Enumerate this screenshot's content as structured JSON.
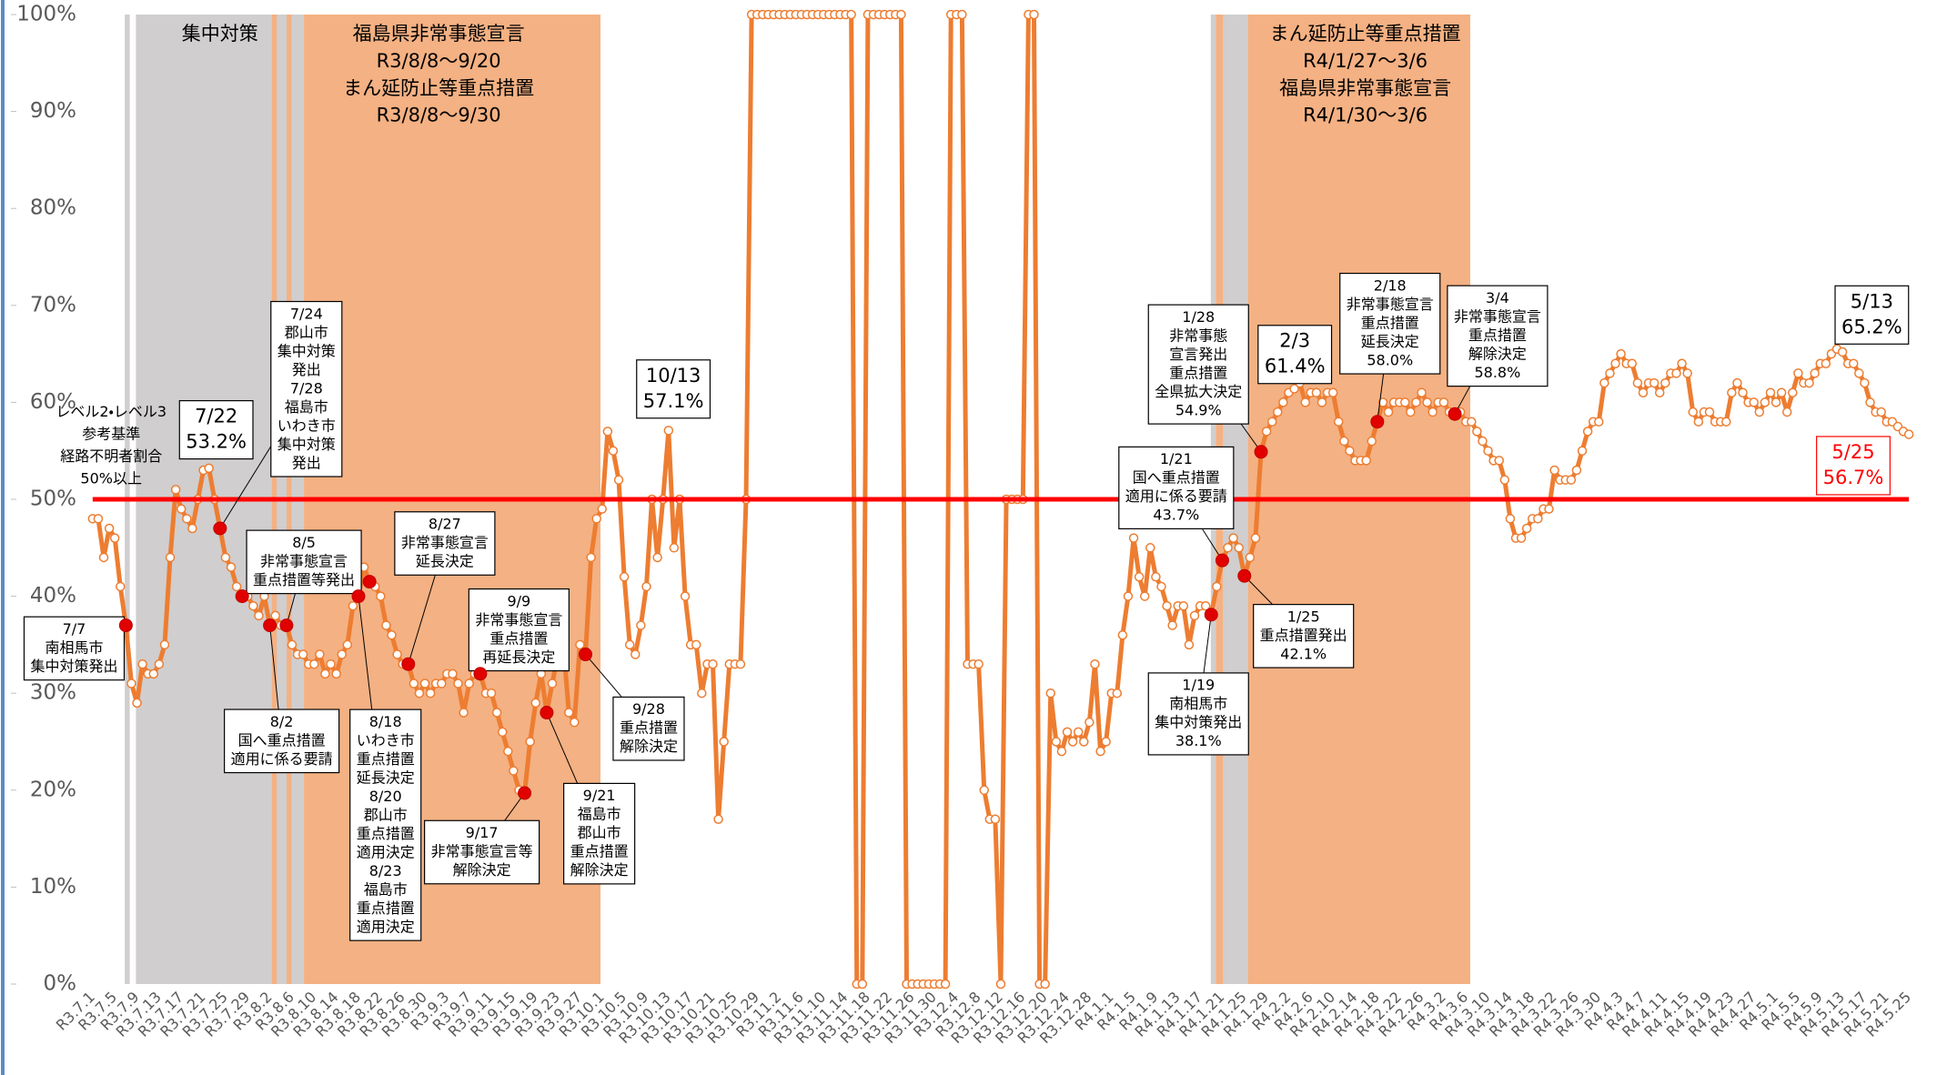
{
  "chart_data": {
    "type": "line",
    "color": "#ed7d31",
    "ylim": [
      0,
      100
    ],
    "yticks": [
      {
        "value": 0,
        "label": "0%"
      },
      {
        "value": 10,
        "label": "10%"
      },
      {
        "value": 20,
        "label": "20%"
      },
      {
        "value": 30,
        "label": "30%"
      },
      {
        "value": 40,
        "label": "40%"
      },
      {
        "value": 50,
        "label": "50%"
      },
      {
        "value": 60,
        "label": "60%"
      },
      {
        "value": 70,
        "label": "70%"
      },
      {
        "value": 80,
        "label": "80%"
      },
      {
        "value": 90,
        "label": "90%"
      },
      {
        "value": 100,
        "label": "100%"
      }
    ],
    "reference_line": {
      "value": 50,
      "color": "#ff0000",
      "label": [
        "レベル2・レベル3",
        "参考基準",
        "経路不明者割合",
        "50%以上"
      ]
    },
    "period_labels": [
      [
        "集中対策"
      ],
      [
        "福島県非常事態宣言",
        "R3/8/8～9/20",
        "まん延防止等重点措置",
        "R3/8/8～9/30"
      ],
      [
        "まん延防止等重点措置",
        "R4/1/27～3/6",
        "福島県非常事態宣言",
        "R4/1/30～3/6"
      ]
    ],
    "annotations": [
      {
        "lines": [
          "7/7",
          "南相馬市",
          "集中対策発出"
        ]
      },
      {
        "lines": [
          "7/22",
          "53.2%"
        ]
      },
      {
        "lines": [
          "7/24",
          "郡山市",
          "集中対策",
          "発出",
          "7/28",
          "福島市",
          "いわき市",
          "集中対策",
          "発出"
        ]
      },
      {
        "lines": [
          "8/5",
          "非常事態宣言",
          "重点措置等発出"
        ]
      },
      {
        "lines": [
          "8/2",
          "国へ重点措置",
          "適用に係る要請"
        ]
      },
      {
        "lines": [
          "8/18",
          "いわき市",
          "重点措置",
          "延長決定",
          "8/20",
          "郡山市",
          "重点措置",
          "適用決定",
          "8/23",
          "福島市",
          "重点措置",
          "適用決定"
        ]
      },
      {
        "lines": [
          "8/27",
          "非常事態宣言",
          "延長決定"
        ]
      },
      {
        "lines": [
          "9/9",
          "非常事態宣言",
          "重点措置",
          "再延長決定"
        ]
      },
      {
        "lines": [
          "9/17",
          "非常事態宣言等",
          "解除決定"
        ]
      },
      {
        "lines": [
          "9/21",
          "福島市",
          "郡山市",
          "重点措置",
          "解除決定"
        ]
      },
      {
        "lines": [
          "9/28",
          "重点措置",
          "解除決定"
        ]
      },
      {
        "lines": [
          "10/13",
          "57.1%"
        ]
      },
      {
        "lines": [
          "1/19",
          "南相馬市",
          "集中対策発出",
          "38.1%"
        ]
      },
      {
        "lines": [
          "1/21",
          "国へ重点措置",
          "適用に係る要請",
          "43.7%"
        ]
      },
      {
        "lines": [
          "1/25",
          "重点措置発出",
          "42.1%"
        ]
      },
      {
        "lines": [
          "1/28",
          "非常事態",
          "宣言発出",
          "重点措置",
          "全県拡大決定",
          "54.9%"
        ]
      },
      {
        "lines": [
          "2/3",
          "61.4%"
        ]
      },
      {
        "lines": [
          "2/18",
          "非常事態宣言",
          "重点措置",
          "延長決定",
          "58.0%"
        ]
      },
      {
        "lines": [
          "3/4",
          "非常事態宣言",
          "重点措置",
          "解除決定",
          "58.8%"
        ]
      },
      {
        "lines": [
          "5/13",
          "65.2%"
        ]
      },
      {
        "lines": [
          "5/25",
          "56.7%"
        ],
        "color": "#ff0000"
      }
    ],
    "categories": [
      "R3.7.1",
      null,
      null,
      null,
      "R3.7.5",
      null,
      null,
      null,
      "R3.7.9",
      null,
      null,
      null,
      "R3.7.13",
      null,
      null,
      null,
      "R3.7.17",
      null,
      null,
      null,
      "R3.7.21",
      null,
      null,
      null,
      "R3.7.25",
      null,
      null,
      null,
      "R3.7.29",
      null,
      null,
      null,
      "R3.8.2",
      null,
      null,
      null,
      "R3.8.6",
      null,
      null,
      null,
      "R3.8.10",
      null,
      null,
      null,
      "R3.8.14",
      null,
      null,
      null,
      "R3.8.18",
      null,
      null,
      null,
      "R3.8.22",
      null,
      null,
      null,
      "R3.8.26",
      null,
      null,
      null,
      "R3.8.30",
      null,
      null,
      null,
      "R3.9.3",
      null,
      null,
      null,
      "R3.9.7",
      null,
      null,
      null,
      "R3.9.11",
      null,
      null,
      null,
      "R3.9.15",
      null,
      null,
      null,
      "R3.9.19",
      null,
      null,
      null,
      "R3.9.23",
      null,
      null,
      null,
      "R3.9.27",
      null,
      null,
      null,
      "R3.10.1",
      null,
      null,
      null,
      "R3.10.5",
      null,
      null,
      null,
      "R3.10.9",
      null,
      null,
      null,
      "R3.10.13",
      null,
      null,
      null,
      "R3.10.17",
      null,
      null,
      null,
      "R3.10.21",
      null,
      null,
      null,
      "R3.10.25",
      null,
      null,
      null,
      "R3.10.29",
      null,
      null,
      null,
      "R3.11.2",
      null,
      null,
      null,
      "R3.11.6",
      null,
      null,
      null,
      "R3.11.10",
      null,
      null,
      null,
      "R3.11.14",
      null,
      null,
      null,
      "R3.11.18",
      null,
      null,
      null,
      "R3.11.22",
      null,
      null,
      null,
      "R3.11.26",
      null,
      null,
      null,
      "R3.11.30",
      null,
      null,
      null,
      "R3.12.4",
      null,
      null,
      null,
      "R3.12.8",
      null,
      null,
      null,
      "R3.12.12",
      null,
      null,
      null,
      "R3.12.16",
      null,
      null,
      null,
      "R3.12.20",
      null,
      null,
      null,
      "R3.12.24",
      null,
      null,
      null,
      "R3.12.28",
      null,
      null,
      null,
      "R4.1.1",
      null,
      null,
      null,
      "R4.1.5",
      null,
      null,
      null,
      "R4.1.9",
      null,
      null,
      null,
      "R4.1.13",
      null,
      null,
      null,
      "R4.1.17",
      null,
      null,
      null,
      "R4.1.21",
      null,
      null,
      null,
      "R4.1.25",
      null,
      null,
      null,
      "R4.1.29",
      null,
      null,
      null,
      "R4.2.2",
      null,
      null,
      null,
      "R4.2.6",
      null,
      null,
      null,
      "R4.2.10",
      null,
      null,
      null,
      "R4.2.14",
      null,
      null,
      null,
      "R4.2.18",
      null,
      null,
      null,
      "R4.2.22",
      null,
      null,
      null,
      "R4.2.26",
      null,
      null,
      null,
      "R4.3.2",
      null,
      null,
      null,
      "R4.3.6",
      null,
      null,
      null,
      "R4.3.10",
      null,
      null,
      null,
      "R4.3.14",
      null,
      null,
      null,
      "R4.3.18",
      null,
      null,
      null,
      "R4.3.22",
      null,
      null,
      null,
      "R4.3.26",
      null,
      null,
      null,
      "R4.3.30",
      null,
      null,
      null,
      "R4.4.3",
      null,
      null,
      null,
      "R4.4.7",
      null,
      null,
      null,
      "R4.4.11",
      null,
      null,
      null,
      "R4.4.15",
      null,
      null,
      null,
      "R4.4.19",
      null,
      null,
      null,
      "R4.4.23",
      null,
      null,
      null,
      "R4.4.27",
      null,
      null,
      null,
      "R4.5.1",
      null,
      null,
      null,
      "R4.5.5",
      null,
      null,
      null,
      "R4.5.9",
      null,
      null,
      null,
      "R4.5.13",
      null,
      null,
      null,
      "R4.5.17",
      null,
      null,
      null,
      "R4.5.21",
      null,
      null,
      null,
      "R4.5.25"
    ],
    "values": [
      48,
      48,
      44,
      47,
      46,
      41,
      37,
      31,
      29,
      33,
      32,
      32,
      33,
      35,
      44,
      51,
      49,
      48,
      47,
      50,
      53,
      53.2,
      50,
      47,
      44,
      43,
      41,
      40,
      40,
      39,
      38,
      40,
      37,
      38,
      37,
      37,
      35,
      34,
      34,
      33,
      33,
      34,
      32,
      33,
      32,
      34,
      35,
      39,
      40,
      43,
      41.5,
      41,
      40,
      37,
      36,
      34,
      33,
      33,
      31,
      30,
      31,
      30,
      31,
      31,
      32,
      32,
      31,
      28,
      31,
      32,
      32,
      30,
      30,
      28,
      26,
      24,
      22,
      20,
      19.7,
      25,
      29,
      32,
      28,
      31,
      34,
      35,
      28,
      27,
      35,
      34,
      44,
      48,
      49,
      57,
      55,
      52,
      42,
      35,
      34,
      37,
      41,
      50,
      44,
      50,
      57.1,
      45,
      50,
      40,
      35,
      35,
      30,
      33,
      33,
      17,
      25,
      33,
      33,
      33,
      50,
      100,
      100,
      100,
      100,
      100,
      100,
      100,
      100,
      100,
      100,
      100,
      100,
      100,
      100,
      100,
      100,
      100,
      100,
      100,
      0,
      0,
      100,
      100,
      100,
      100,
      100,
      100,
      100,
      0,
      0,
      0,
      0,
      0,
      0,
      0,
      0,
      100,
      100,
      100,
      33,
      33,
      33,
      20,
      17,
      17,
      0,
      50,
      50,
      50,
      50,
      100,
      100,
      0,
      0,
      30,
      25,
      24,
      26,
      25,
      26,
      25,
      27,
      33,
      24,
      25,
      30,
      30,
      36,
      40,
      46,
      42,
      40,
      45,
      42,
      41,
      39,
      37,
      39,
      39,
      35,
      38,
      39,
      39,
      38.1,
      41,
      43.7,
      45,
      46,
      45,
      42.1,
      44,
      46,
      54.9,
      57,
      58,
      59,
      60,
      61,
      61.4,
      62,
      60,
      61,
      61,
      60,
      61,
      61,
      58,
      56,
      55,
      54,
      54,
      54,
      56,
      58.0,
      60,
      59,
      60,
      60,
      60,
      59,
      60,
      61,
      60,
      59,
      60,
      60,
      59,
      58.8,
      59,
      58,
      58,
      57,
      56,
      55,
      54,
      54,
      52,
      48,
      46,
      46,
      47,
      48,
      48,
      49,
      49,
      53,
      52,
      52,
      52,
      53,
      55,
      57,
      58,
      58,
      62,
      63,
      64,
      65,
      64,
      64,
      62,
      61,
      62,
      62,
      61,
      62,
      63,
      63,
      64,
      63,
      59,
      58,
      59,
      59,
      58,
      58,
      58,
      61,
      62,
      61,
      60,
      60,
      59,
      60,
      61,
      60,
      61,
      59,
      61,
      63,
      62,
      62,
      63,
      64,
      64,
      65,
      65.5,
      65.2,
      64,
      64,
      63,
      62,
      60,
      59,
      59,
      58,
      58,
      57.5,
      57,
      56.7
    ]
  }
}
